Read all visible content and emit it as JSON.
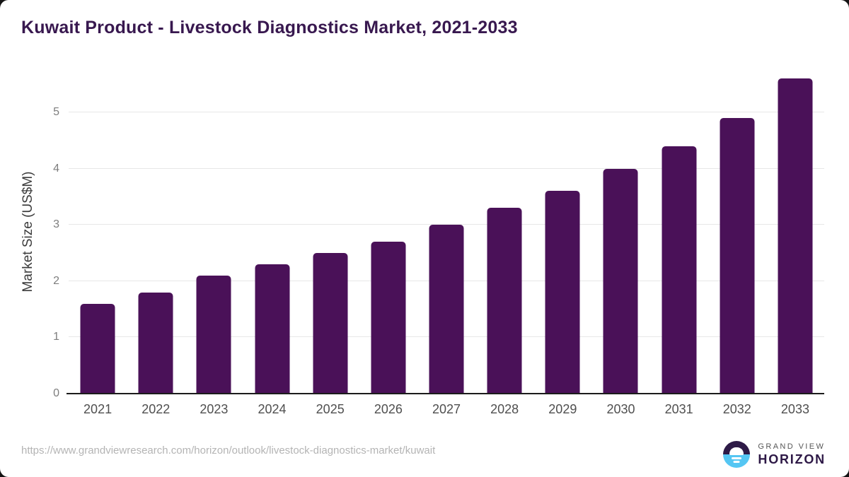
{
  "title": "Kuwait Product - Livestock Diagnostics Market, 2021-2033",
  "chart_data": {
    "type": "bar",
    "title": "Kuwait Product - Livestock Diagnostics Market, 2021-2033",
    "categories": [
      "2021",
      "2022",
      "2023",
      "2024",
      "2025",
      "2026",
      "2027",
      "2028",
      "2029",
      "2030",
      "2031",
      "2032",
      "2033"
    ],
    "values": [
      1.6,
      1.8,
      2.1,
      2.3,
      2.5,
      2.7,
      3.0,
      3.3,
      3.6,
      4.0,
      4.4,
      4.9,
      5.6
    ],
    "xlabel": "",
    "ylabel": "Market Size (US$M)",
    "ylim": [
      0,
      5.75
    ],
    "yticks": [
      0,
      1,
      2,
      3,
      4,
      5
    ],
    "grid": "horizontal",
    "legend": "none",
    "bar_color": "#4a1158"
  },
  "colors": {
    "title_text": "#38184f",
    "bar_fill": "#4a1158",
    "gridline": "#e7e7e7",
    "axis_line": "#1c1c1c",
    "tick_text": "#7d7d7d",
    "category_text": "#4f4f4f",
    "url_text": "#b4b4b4",
    "logo_dark_purple": "#2e1a47",
    "logo_light_blue": "#55c6f3"
  },
  "footer": {
    "source_url": "https://www.grandviewresearch.com/horizon/outlook/livestock-diagnostics-market/kuwait",
    "logo": {
      "line1": "GRAND VIEW",
      "line2": "HORIZON"
    }
  }
}
